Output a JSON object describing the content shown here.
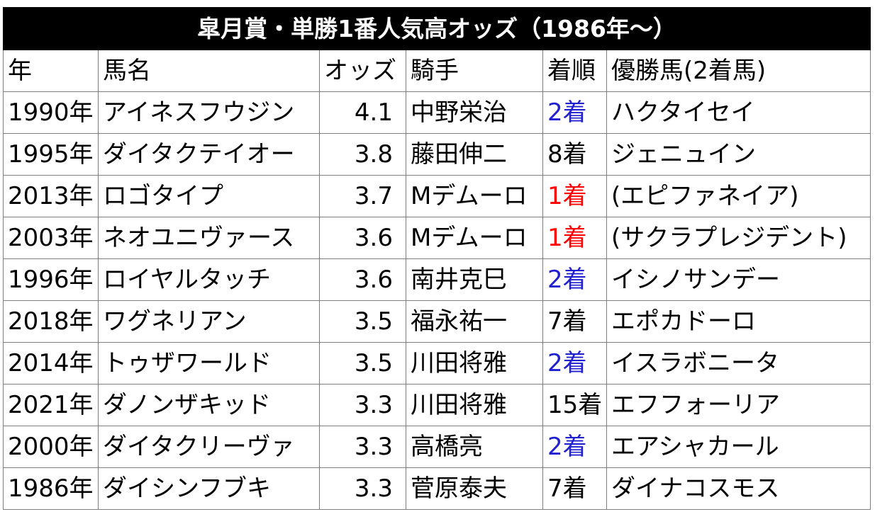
{
  "title": "皐月賞・単勝1番人気高オッズ（1986年～）",
  "headers": {
    "year": "年",
    "horse": "馬名",
    "odds": "オッズ",
    "jockey": "騎手",
    "finish": "着順",
    "winner": "優勝馬(2着馬)"
  },
  "colors": {
    "win": "#ff0000",
    "second": "#2020d0"
  },
  "rows": [
    {
      "year": "1990年",
      "horse": "アイネスフウジン",
      "odds": "4.1",
      "jockey": "中野栄治",
      "finish": "2着",
      "winner": "ハクタイセイ"
    },
    {
      "year": "1995年",
      "horse": "ダイタクテイオー",
      "odds": "3.8",
      "jockey": "藤田伸二",
      "finish": "8着",
      "winner": "ジェニュイン"
    },
    {
      "year": "2013年",
      "horse": "ロゴタイプ",
      "odds": "3.7",
      "jockey": "Mデムーロ",
      "finish": "1着",
      "winner": "(エピファネイア)"
    },
    {
      "year": "2003年",
      "horse": "ネオユニヴァース",
      "odds": "3.6",
      "jockey": "Mデムーロ",
      "finish": "1着",
      "winner": "(サクラプレジデント)"
    },
    {
      "year": "1996年",
      "horse": "ロイヤルタッチ",
      "odds": "3.6",
      "jockey": "南井克巳",
      "finish": "2着",
      "winner": "イシノサンデー"
    },
    {
      "year": "2018年",
      "horse": "ワグネリアン",
      "odds": "3.5",
      "jockey": "福永祐一",
      "finish": "7着",
      "winner": "エポカドーロ"
    },
    {
      "year": "2014年",
      "horse": "トゥザワールド",
      "odds": "3.5",
      "jockey": "川田将雅",
      "finish": "2着",
      "winner": "イスラボニータ"
    },
    {
      "year": "2021年",
      "horse": "ダノンザキッド",
      "odds": "3.3",
      "jockey": "川田将雅",
      "finish": "15着",
      "winner": "エフフォーリア"
    },
    {
      "year": "2000年",
      "horse": "ダイタクリーヴァ",
      "odds": "3.3",
      "jockey": "高橋亮",
      "finish": "2着",
      "winner": "エアシャカール"
    },
    {
      "year": "1986年",
      "horse": "ダイシンフブキ",
      "odds": "3.3",
      "jockey": "菅原泰夫",
      "finish": "7着",
      "winner": "ダイナコスモス"
    }
  ]
}
